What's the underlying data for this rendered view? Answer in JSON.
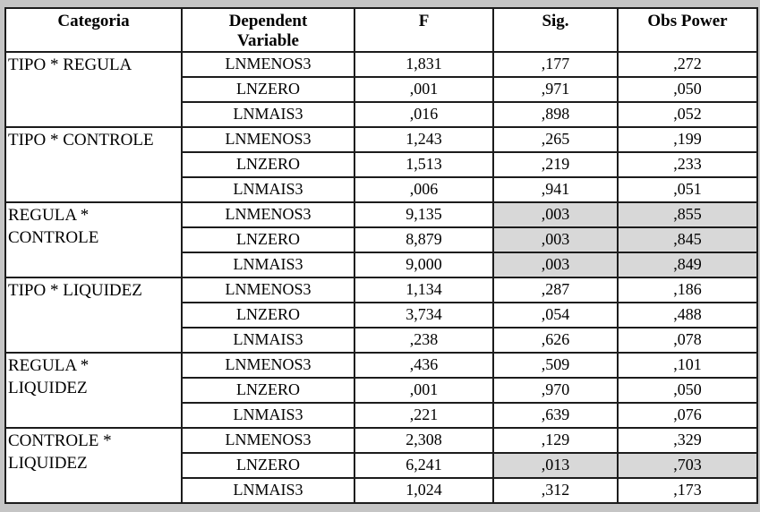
{
  "page": {
    "frame_color": "#c5c5c5",
    "highlight_color": "#d8d8d8"
  },
  "table": {
    "headers": {
      "categoria": "Categoria",
      "dependent_variable": "Dependent Variable",
      "f": "F",
      "sig": "Sig.",
      "obs_power": "Obs Power"
    },
    "groups": [
      {
        "category": "TIPO * REGULA",
        "rows": [
          {
            "dependent_variable": "LNMENOS3",
            "f": "1,831",
            "sig": ",177",
            "obs_power": ",272",
            "highlight": false
          },
          {
            "dependent_variable": "LNZERO",
            "f": ",001",
            "sig": ",971",
            "obs_power": ",050",
            "highlight": false
          },
          {
            "dependent_variable": "LNMAIS3",
            "f": ",016",
            "sig": ",898",
            "obs_power": ",052",
            "highlight": false
          }
        ]
      },
      {
        "category": "TIPO * CONTROLE",
        "rows": [
          {
            "dependent_variable": "LNMENOS3",
            "f": "1,243",
            "sig": ",265",
            "obs_power": ",199",
            "highlight": false
          },
          {
            "dependent_variable": "LNZERO",
            "f": "1,513",
            "sig": ",219",
            "obs_power": ",233",
            "highlight": false
          },
          {
            "dependent_variable": "LNMAIS3",
            "f": ",006",
            "sig": ",941",
            "obs_power": ",051",
            "highlight": false
          }
        ]
      },
      {
        "category": "REGULA *\nCONTROLE",
        "rows": [
          {
            "dependent_variable": "LNMENOS3",
            "f": "9,135",
            "sig": ",003",
            "obs_power": ",855",
            "highlight": true
          },
          {
            "dependent_variable": "LNZERO",
            "f": "8,879",
            "sig": ",003",
            "obs_power": ",845",
            "highlight": true
          },
          {
            "dependent_variable": "LNMAIS3",
            "f": "9,000",
            "sig": ",003",
            "obs_power": ",849",
            "highlight": true
          }
        ]
      },
      {
        "category": "TIPO * LIQUIDEZ",
        "rows": [
          {
            "dependent_variable": "LNMENOS3",
            "f": "1,134",
            "sig": ",287",
            "obs_power": ",186",
            "highlight": false
          },
          {
            "dependent_variable": "LNZERO",
            "f": "3,734",
            "sig": ",054",
            "obs_power": ",488",
            "highlight": false
          },
          {
            "dependent_variable": "LNMAIS3",
            "f": ",238",
            "sig": ",626",
            "obs_power": ",078",
            "highlight": false
          }
        ]
      },
      {
        "category": "REGULA *\nLIQUIDEZ",
        "rows": [
          {
            "dependent_variable": "LNMENOS3",
            "f": ",436",
            "sig": ",509",
            "obs_power": ",101",
            "highlight": false
          },
          {
            "dependent_variable": "LNZERO",
            "f": ",001",
            "sig": ",970",
            "obs_power": ",050",
            "highlight": false
          },
          {
            "dependent_variable": "LNMAIS3",
            "f": ",221",
            "sig": ",639",
            "obs_power": ",076",
            "highlight": false
          }
        ]
      },
      {
        "category": "CONTROLE *\nLIQUIDEZ",
        "rows": [
          {
            "dependent_variable": "LNMENOS3",
            "f": "2,308",
            "sig": ",129",
            "obs_power": ",329",
            "highlight": false
          },
          {
            "dependent_variable": "LNZERO",
            "f": "6,241",
            "sig": ",013",
            "obs_power": ",703",
            "highlight": true
          },
          {
            "dependent_variable": "LNMAIS3",
            "f": "1,024",
            "sig": ",312",
            "obs_power": ",173",
            "highlight": false
          }
        ]
      }
    ]
  }
}
